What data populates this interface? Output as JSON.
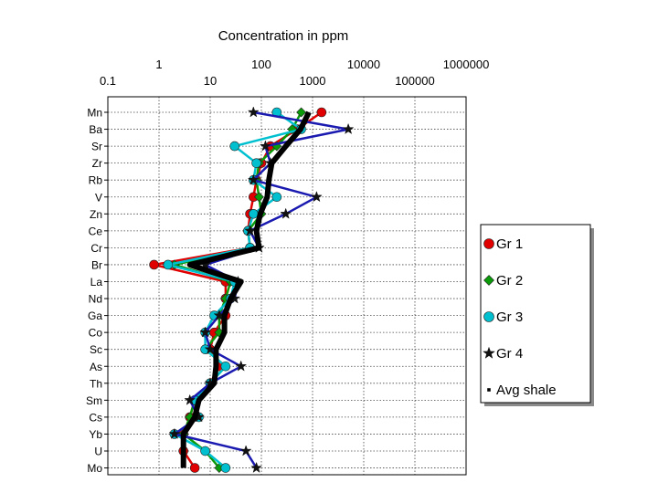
{
  "chart_data": {
    "type": "line",
    "orientation": "horizontal-profile",
    "title": "Concentration in ppm",
    "x_scale": "log",
    "xlim": [
      0.1,
      1000000
    ],
    "x_ticks_top": [
      "1",
      "100",
      "10000",
      "1000000"
    ],
    "x_ticks_bottom": [
      "0.1",
      "10",
      "1000",
      "100000"
    ],
    "categories": [
      "Mn",
      "Ba",
      "Sr",
      "Zr",
      "Rb",
      "V",
      "Zn",
      "Ce",
      "Cr",
      "Br",
      "La",
      "Nd",
      "Ga",
      "Co",
      "Sc",
      "As",
      "Th",
      "Sm",
      "Cs",
      "Yb",
      "U",
      "Mo"
    ],
    "legend_position": "right",
    "grid": true,
    "series": [
      {
        "name": "Gr 1",
        "color": "#e00000",
        "marker": "circle",
        "values": [
          1500,
          500,
          150,
          100,
          80,
          70,
          60,
          55,
          60,
          0.8,
          20,
          20,
          20,
          12,
          10,
          15,
          10,
          5,
          4,
          3,
          3,
          5
        ]
      },
      {
        "name": "Gr 2",
        "color": "#0a9a0a",
        "marker": "diamond",
        "values": [
          600,
          400,
          200,
          90,
          80,
          90,
          100,
          55,
          60,
          2,
          25,
          20,
          15,
          15,
          8,
          20,
          10,
          5,
          4,
          3,
          8,
          15
        ]
      },
      {
        "name": "Gr 3",
        "color": "#00c0d0",
        "marker": "circle",
        "values": [
          200,
          600,
          30,
          80,
          70,
          200,
          70,
          55,
          60,
          1.5,
          30,
          25,
          12,
          8,
          8,
          20,
          10,
          5,
          6,
          2,
          8,
          20
        ]
      },
      {
        "name": "Gr 4",
        "color": "#1a1ab0",
        "marker": "star",
        "values": [
          70,
          5000,
          120,
          150,
          70,
          1200,
          300,
          60,
          90,
          8,
          35,
          30,
          15,
          8,
          10,
          40,
          10,
          4,
          6,
          2,
          50,
          80
        ]
      },
      {
        "name": "Avg shale",
        "color": "#000000",
        "marker": "square",
        "values": [
          850,
          580,
          300,
          160,
          140,
          130,
          95,
          80,
          90,
          4,
          40,
          25,
          19,
          19,
          13,
          13,
          12,
          6,
          5,
          3,
          3,
          3
        ]
      }
    ]
  }
}
